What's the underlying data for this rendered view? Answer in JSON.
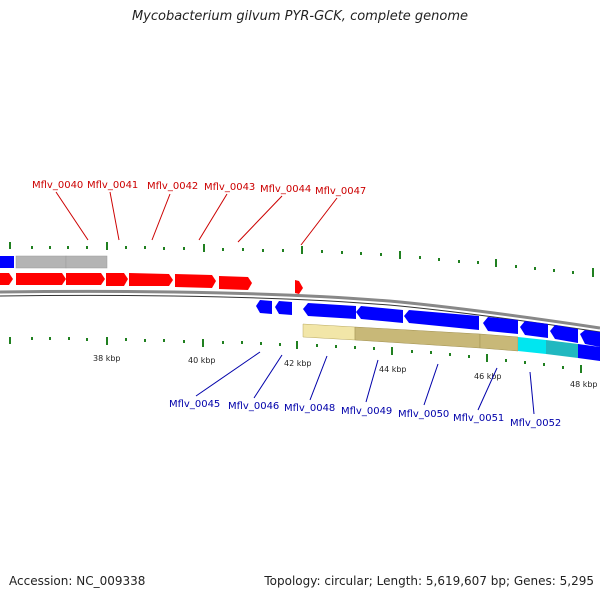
{
  "title": "Mycobacterium gilvum PYR-GCK, complete genome",
  "footer": {
    "accession": "Accession: NC_009338",
    "stats": "Topology: circular; Length: 5,619,607 bp; Genes: 5,295"
  },
  "colors": {
    "forward_gene": "#ff0000",
    "reverse_gene": "#0000ff",
    "grey_feature": "#b4b4b4",
    "khaki_feature": "#c8b878",
    "cyan_feature": "#00d8e0",
    "tick": "#208020",
    "backbone": "#888888",
    "label_top": "#cc0000",
    "label_bottom": "#0000aa"
  },
  "scale_labels": [
    "38 kbp",
    "40 kbp",
    "42 kbp",
    "44 kbp",
    "46 kbp",
    "48 kbp"
  ],
  "top_genes": [
    "Mflv_0040",
    "Mflv_0041",
    "Mflv_0042",
    "Mflv_0043",
    "Mflv_0044",
    "Mflv_0047"
  ],
  "bottom_genes": [
    "Mflv_0045",
    "Mflv_0046",
    "Mflv_0048",
    "Mflv_0049",
    "Mflv_0050",
    "Mflv_0051",
    "Mflv_0052"
  ]
}
